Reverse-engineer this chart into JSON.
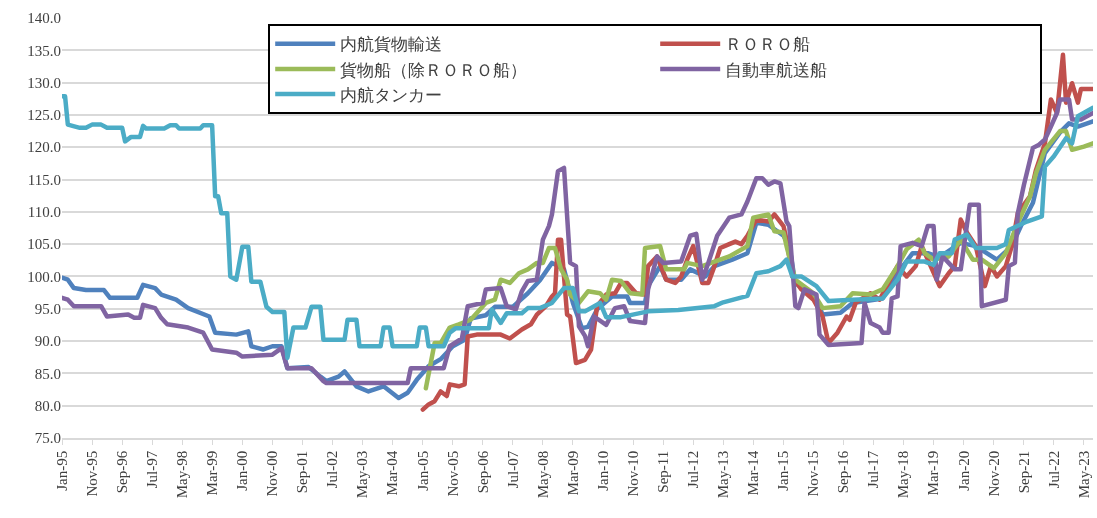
{
  "chart_data": {
    "type": "line",
    "xlim": [
      "1995-01",
      "2023-08"
    ],
    "xticks": [
      {
        "value": "1995-01",
        "label": "Jan-95"
      },
      {
        "value": "1995-11",
        "label": "Nov-95"
      },
      {
        "value": "1996-09",
        "label": "Sep-96"
      },
      {
        "value": "1997-07",
        "label": "Jul-97"
      },
      {
        "value": "1998-05",
        "label": "May-98"
      },
      {
        "value": "1999-03",
        "label": "Mar-99"
      },
      {
        "value": "2000-01",
        "label": "Jan-00"
      },
      {
        "value": "2000-11",
        "label": "Nov-00"
      },
      {
        "value": "2001-09",
        "label": "Sep-01"
      },
      {
        "value": "2002-07",
        "label": "Jul-02"
      },
      {
        "value": "2003-05",
        "label": "May-03"
      },
      {
        "value": "2004-03",
        "label": "Mar-04"
      },
      {
        "value": "2005-01",
        "label": "Jan-05"
      },
      {
        "value": "2005-11",
        "label": "Nov-05"
      },
      {
        "value": "2006-09",
        "label": "Sep-06"
      },
      {
        "value": "2007-07",
        "label": "Jul-07"
      },
      {
        "value": "2008-05",
        "label": "May-08"
      },
      {
        "value": "2009-03",
        "label": "Mar-09"
      },
      {
        "value": "2010-01",
        "label": "Jan-10"
      },
      {
        "value": "2010-11",
        "label": "Nov-10"
      },
      {
        "value": "2011-09",
        "label": "Sep-11"
      },
      {
        "value": "2012-07",
        "label": "Jul-12"
      },
      {
        "value": "2013-05",
        "label": "May-13"
      },
      {
        "value": "2014-03",
        "label": "Mar-14"
      },
      {
        "value": "2015-01",
        "label": "Jan-15"
      },
      {
        "value": "2015-11",
        "label": "Nov-15"
      },
      {
        "value": "2016-09",
        "label": "Sep-16"
      },
      {
        "value": "2017-07",
        "label": "Jul-17"
      },
      {
        "value": "2018-05",
        "label": "May-18"
      },
      {
        "value": "2019-03",
        "label": "Mar-19"
      },
      {
        "value": "2020-01",
        "label": "Jan-20"
      },
      {
        "value": "2020-11",
        "label": "Nov-20"
      },
      {
        "value": "2021-09",
        "label": "Sep-21"
      },
      {
        "value": "2022-07",
        "label": "Jul-22"
      },
      {
        "value": "2023-05",
        "label": "May-23"
      }
    ],
    "ylim": [
      75,
      140
    ],
    "yticks": [
      {
        "value": 75,
        "label": "75.0"
      },
      {
        "value": 80,
        "label": "80.0"
      },
      {
        "value": 85,
        "label": "85.0"
      },
      {
        "value": 90,
        "label": "90.0"
      },
      {
        "value": 95,
        "label": "95.0"
      },
      {
        "value": 100,
        "label": "100.0"
      },
      {
        "value": 105,
        "label": "105.0"
      },
      {
        "value": 110,
        "label": "110.0"
      },
      {
        "value": 115,
        "label": "115.0"
      },
      {
        "value": 120,
        "label": "120.0"
      },
      {
        "value": 125,
        "label": "125.0"
      },
      {
        "value": 130,
        "label": "130.0"
      },
      {
        "value": 135,
        "label": "135.0"
      },
      {
        "value": 140,
        "label": "140.0"
      }
    ],
    "grid": "y",
    "legend": "top",
    "marker": "none",
    "line_style": "solid",
    "series": [
      {
        "name": "内航貨物輸送",
        "color": "#4f81bd",
        "x": [
          "1995-01",
          "1995-03",
          "1995-05",
          "1995-09",
          "1996-03",
          "1996-05",
          "1997-02",
          "1997-04",
          "1997-08",
          "1997-10",
          "1998-03",
          "1998-07",
          "1999-02",
          "1999-04",
          "1999-11",
          "2000-03",
          "2000-04",
          "2000-08",
          "2000-11",
          "2001-02",
          "2001-04",
          "2001-11",
          "2002-03",
          "2002-05",
          "2002-09",
          "2002-11",
          "2003-03",
          "2003-07",
          "2003-12",
          "2004-05",
          "2004-08",
          "2004-11",
          "2005-03",
          "2005-07",
          "2005-11",
          "2006-03",
          "2006-05",
          "2006-10",
          "2007-01",
          "2007-07",
          "2007-12",
          "2008-04",
          "2008-08",
          "2008-12",
          "2009-03",
          "2009-06",
          "2009-08",
          "2009-11",
          "2010-04",
          "2010-09",
          "2010-10",
          "2011-03",
          "2011-04",
          "2011-08",
          "2011-10",
          "2012-03",
          "2012-06",
          "2012-11",
          "2013-02",
          "2013-08",
          "2014-01",
          "2014-04",
          "2014-08",
          "2015-01",
          "2015-03",
          "2015-05",
          "2015-12",
          "2016-02",
          "2016-08",
          "2016-12",
          "2017-10",
          "2018-03",
          "2018-08",
          "2019-01",
          "2019-05",
          "2019-12",
          "2020-05",
          "2020-12",
          "2021-05",
          "2021-08",
          "2021-12",
          "2022-04",
          "2022-09",
          "2022-12",
          "2023-03",
          "2023-08"
        ],
        "values": [
          99.8,
          99.5,
          98.2,
          97.9,
          97.9,
          96.7,
          96.7,
          98.7,
          98.2,
          97.2,
          96.4,
          95.1,
          93.8,
          91.3,
          91.0,
          91.5,
          89.2,
          88.7,
          89.2,
          89.2,
          85.8,
          86.0,
          84.5,
          83.8,
          84.5,
          85.3,
          83.0,
          82.2,
          83.0,
          81.2,
          82.0,
          84.0,
          86.1,
          87.2,
          89.2,
          90.2,
          93.5,
          94.0,
          95.3,
          95.3,
          97.4,
          99.4,
          102.1,
          101.1,
          95.9,
          92.0,
          92.2,
          94.9,
          96.9,
          96.9,
          95.9,
          95.9,
          98.5,
          101.6,
          99.5,
          99.5,
          101.1,
          100.0,
          101.6,
          102.6,
          103.6,
          108.3,
          108.0,
          106.3,
          104.7,
          99.0,
          96.4,
          94.1,
          94.4,
          95.9,
          96.6,
          100.5,
          103.6,
          103.6,
          103.0,
          105.2,
          104.7,
          102.6,
          104.7,
          107.8,
          111.4,
          119.1,
          122.3,
          123.7,
          123.2,
          124.0
        ]
      },
      {
        "name": "ＲＯＲＯ船",
        "color": "#c0504d",
        "x": [
          "2005-01",
          "2005-03",
          "2005-05",
          "2005-07",
          "2005-09",
          "2005-10",
          "2006-01",
          "2006-03",
          "2006-04",
          "2006-07",
          "2007-03",
          "2007-06",
          "2007-10",
          "2008-01",
          "2008-03",
          "2008-06",
          "2008-08",
          "2008-09",
          "2008-10",
          "2008-11",
          "2009-01",
          "2009-02",
          "2009-04",
          "2009-07",
          "2009-09",
          "2009-11",
          "2010-02",
          "2010-05",
          "2010-07",
          "2010-09",
          "2010-12",
          "2011-03",
          "2011-04",
          "2011-07",
          "2011-10",
          "2012-01",
          "2012-03",
          "2012-05",
          "2012-07",
          "2012-10",
          "2012-12",
          "2013-02",
          "2013-04",
          "2013-07",
          "2013-09",
          "2013-11",
          "2014-01",
          "2014-04",
          "2014-08",
          "2014-10",
          "2015-01",
          "2015-02",
          "2015-04",
          "2015-07",
          "2015-11",
          "2016-02",
          "2016-04",
          "2016-07",
          "2016-10",
          "2016-11",
          "2017-01",
          "2017-06",
          "2017-09",
          "2018-01",
          "2018-03",
          "2018-06",
          "2018-09",
          "2018-11",
          "2019-01",
          "2019-04",
          "2019-05",
          "2019-08",
          "2019-10",
          "2019-12",
          "2020-02",
          "2020-05",
          "2020-08",
          "2020-10",
          "2020-12",
          "2021-03",
          "2021-05",
          "2021-07",
          "2021-11",
          "2022-01",
          "2022-04",
          "2022-06",
          "2022-08",
          "2022-10",
          "2022-11",
          "2023-01",
          "2023-03",
          "2023-04",
          "2023-08"
        ],
        "values": [
          79.4,
          80.2,
          80.7,
          82.2,
          81.5,
          83.3,
          83.0,
          83.3,
          90.7,
          91.0,
          91.0,
          90.4,
          91.8,
          92.6,
          94.1,
          95.4,
          96.9,
          97.4,
          105.7,
          105.7,
          94.1,
          93.8,
          86.6,
          87.1,
          88.7,
          95.4,
          97.2,
          97.4,
          99.0,
          99.0,
          97.4,
          97.2,
          101.6,
          103.1,
          99.5,
          99.0,
          100.0,
          102.6,
          104.7,
          99.0,
          99.0,
          101.6,
          104.4,
          105.0,
          105.4,
          105.0,
          106.3,
          108.8,
          108.5,
          109.6,
          107.8,
          105.7,
          100.0,
          98.0,
          96.4,
          93.8,
          89.7,
          91.3,
          93.8,
          93.3,
          95.9,
          97.4,
          96.4,
          100.0,
          101.6,
          100.0,
          101.6,
          104.7,
          102.6,
          99.5,
          98.5,
          100.5,
          101.6,
          108.8,
          106.8,
          104.7,
          98.5,
          101.6,
          100.0,
          101.6,
          104.7,
          109.8,
          112.4,
          116.5,
          120.6,
          127.4,
          125.3,
          134.3,
          126.9,
          129.9,
          126.9,
          129.0,
          129.0
        ]
      },
      {
        "name": "貨物船（除ＲＯＲＯ船）",
        "color": "#9bbb59",
        "x": [
          "2005-02",
          "2005-05",
          "2005-07",
          "2005-10",
          "2006-01",
          "2006-05",
          "2006-10",
          "2007-01",
          "2007-03",
          "2007-06",
          "2007-09",
          "2007-12",
          "2008-03",
          "2008-05",
          "2008-07",
          "2008-09",
          "2008-11",
          "2009-01",
          "2009-02",
          "2009-05",
          "2009-08",
          "2009-12",
          "2010-02",
          "2010-04",
          "2010-07",
          "2010-10",
          "2011-02",
          "2011-03",
          "2011-08",
          "2011-10",
          "2012-04",
          "2012-05",
          "2012-10",
          "2013-02",
          "2013-07",
          "2014-01",
          "2014-03",
          "2014-08",
          "2014-10",
          "2015-01",
          "2015-02",
          "2015-05",
          "2015-11",
          "2016-02",
          "2016-08",
          "2016-12",
          "2017-06",
          "2017-10",
          "2018-03",
          "2018-06",
          "2018-10",
          "2018-12",
          "2019-03",
          "2019-08",
          "2019-12",
          "2020-04",
          "2020-07",
          "2020-11",
          "2021-03",
          "2021-07",
          "2021-11",
          "2022-01",
          "2022-04",
          "2022-09",
          "2022-11",
          "2023-01",
          "2023-05",
          "2023-08"
        ],
        "values": [
          82.7,
          89.7,
          89.7,
          92.1,
          92.6,
          93.3,
          95.9,
          96.4,
          99.5,
          99.0,
          100.5,
          101.1,
          102.1,
          102.1,
          104.4,
          104.4,
          101.1,
          99.5,
          97.2,
          95.9,
          97.7,
          97.4,
          96.4,
          99.5,
          99.3,
          97.4,
          97.2,
          104.4,
          104.7,
          101.1,
          101.1,
          102.1,
          101.6,
          102.3,
          103.1,
          104.7,
          109.1,
          109.6,
          107.0,
          106.8,
          104.7,
          99.5,
          97.4,
          95.1,
          95.4,
          97.4,
          97.2,
          98.0,
          101.6,
          104.2,
          105.7,
          103.6,
          102.6,
          103.1,
          105.7,
          102.6,
          102.6,
          101.3,
          103.6,
          108.3,
          112.4,
          116.0,
          119.6,
          122.5,
          122.5,
          119.6,
          120.1,
          120.6
        ]
      },
      {
        "name": "自動車航送船",
        "color": "#8064a2",
        "x": [
          "1995-01",
          "1995-03",
          "1995-05",
          "1996-02",
          "1996-04",
          "1996-11",
          "1997-01",
          "1997-03",
          "1997-04",
          "1997-08",
          "1997-10",
          "1997-12",
          "1998-07",
          "1998-12",
          "1999-03",
          "1999-11",
          "2000-01",
          "2000-11",
          "2001-02",
          "2001-04",
          "2001-12",
          "2002-04",
          "2002-05",
          "2004-08",
          "2004-09",
          "2005-08",
          "2005-10",
          "2006-02",
          "2006-04",
          "2006-09",
          "2006-10",
          "2007-03",
          "2007-05",
          "2007-08",
          "2007-10",
          "2007-12",
          "2008-03",
          "2008-05",
          "2008-07",
          "2008-08",
          "2008-10",
          "2008-12",
          "2009-02",
          "2009-04",
          "2009-05",
          "2009-07",
          "2009-08",
          "2009-10",
          "2010-02",
          "2010-05",
          "2010-08",
          "2010-10",
          "2011-03",
          "2011-04",
          "2011-07",
          "2011-09",
          "2012-03",
          "2012-06",
          "2012-08",
          "2012-10",
          "2012-12",
          "2013-03",
          "2013-07",
          "2013-11",
          "2014-01",
          "2014-04",
          "2014-06",
          "2014-08",
          "2014-10",
          "2014-12",
          "2015-02",
          "2015-03",
          "2015-05",
          "2015-06",
          "2015-08",
          "2015-12",
          "2016-01",
          "2016-04",
          "2017-03",
          "2017-04",
          "2017-06",
          "2017-09",
          "2017-10",
          "2017-12",
          "2018-01",
          "2018-03",
          "2018-04",
          "2018-08",
          "2018-11",
          "2019-01",
          "2019-03",
          "2019-04",
          "2019-06",
          "2019-10",
          "2019-12",
          "2020-03",
          "2020-06",
          "2020-07",
          "2021-03",
          "2021-04",
          "2021-06",
          "2021-07",
          "2021-09",
          "2021-12",
          "2022-02",
          "2022-04",
          "2022-06",
          "2022-08",
          "2022-09",
          "2022-12",
          "2023-01",
          "2023-04",
          "2023-08"
        ],
        "values": [
          96.7,
          96.4,
          95.4,
          95.4,
          93.8,
          94.1,
          93.6,
          93.6,
          95.6,
          95.1,
          93.6,
          92.6,
          92.1,
          91.3,
          88.7,
          88.2,
          87.6,
          87.9,
          88.9,
          85.8,
          85.8,
          83.8,
          83.5,
          83.5,
          85.8,
          85.8,
          89.2,
          90.4,
          95.4,
          95.9,
          98.0,
          98.2,
          95.4,
          94.9,
          97.7,
          99.3,
          99.5,
          105.7,
          107.8,
          109.6,
          116.3,
          116.8,
          102.1,
          101.6,
          92.3,
          90.8,
          89.2,
          93.8,
          92.5,
          95.1,
          95.4,
          93.1,
          92.8,
          98.0,
          103.1,
          102.1,
          102.3,
          106.3,
          106.6,
          99.5,
          102.1,
          106.3,
          109.1,
          109.6,
          111.6,
          115.2,
          115.2,
          114.2,
          114.7,
          114.4,
          108.5,
          107.8,
          95.4,
          95.1,
          98.0,
          97.2,
          91.0,
          89.4,
          89.7,
          95.9,
          92.8,
          92.1,
          91.3,
          91.3,
          96.6,
          96.9,
          104.7,
          105.2,
          104.7,
          107.8,
          107.8,
          99.5,
          103.1,
          101.1,
          101.1,
          111.1,
          111.1,
          95.4,
          96.4,
          101.6,
          102.1,
          109.8,
          114.2,
          119.9,
          120.4,
          121.2,
          123.2,
          125.3,
          127.4,
          127.4,
          124.3,
          124.3,
          125.3
        ]
      },
      {
        "name": "内航タンカー",
        "color": "#4bacc6",
        "x": [
          "1995-01",
          "1995-02",
          "1995-03",
          "1995-07",
          "1995-09",
          "1995-11",
          "1996-02",
          "1996-04",
          "1996-09",
          "1996-10",
          "1996-12",
          "1997-03",
          "1997-04",
          "1997-05",
          "1997-11",
          "1998-01",
          "1998-03",
          "1998-04",
          "1998-11",
          "1998-12",
          "1999-03",
          "1999-04",
          "1999-05",
          "1999-06",
          "1999-08",
          "1999-09",
          "1999-11",
          "2000-01",
          "2000-03",
          "2000-04",
          "2000-07",
          "2000-09",
          "2000-11",
          "2001-03",
          "2001-04",
          "2001-06",
          "2001-10",
          "2001-12",
          "2002-03",
          "2002-04",
          "2002-11",
          "2002-12",
          "2003-03",
          "2003-04",
          "2003-11",
          "2003-12",
          "2004-02",
          "2004-03",
          "2004-11",
          "2004-12",
          "2005-02",
          "2005-03",
          "2005-08",
          "2005-10",
          "2005-12",
          "2006-11",
          "2006-12",
          "2007-03",
          "2007-05",
          "2007-10",
          "2007-12",
          "2008-04",
          "2008-08",
          "2008-12",
          "2009-03",
          "2009-05",
          "2009-07",
          "2009-12",
          "2010-02",
          "2010-07",
          "2011-04",
          "2012-02",
          "2013-02",
          "2013-05",
          "2014-01",
          "2014-04",
          "2014-08",
          "2014-12",
          "2015-02",
          "2015-04",
          "2015-07",
          "2015-12",
          "2016-04",
          "2016-12",
          "2017-10",
          "2018-03",
          "2018-06",
          "2018-12",
          "2019-03",
          "2019-05",
          "2019-09",
          "2019-10",
          "2020-02",
          "2020-05",
          "2020-12",
          "2021-03",
          "2021-04",
          "2021-10",
          "2022-03",
          "2022-04",
          "2022-07",
          "2022-11",
          "2023-01",
          "2023-03",
          "2023-08"
        ],
        "values": [
          127.9,
          127.9,
          123.5,
          123.0,
          123.0,
          123.5,
          123.5,
          123.0,
          123.0,
          120.9,
          121.6,
          121.6,
          123.3,
          122.9,
          122.9,
          123.4,
          123.4,
          122.9,
          122.9,
          123.4,
          123.4,
          112.4,
          112.4,
          109.8,
          109.8,
          100.0,
          99.5,
          104.6,
          104.6,
          99.2,
          99.2,
          95.3,
          94.5,
          94.5,
          87.4,
          92.1,
          92.1,
          95.3,
          95.3,
          90.2,
          90.2,
          93.3,
          93.3,
          89.2,
          89.2,
          92.1,
          92.1,
          89.2,
          89.2,
          92.1,
          92.1,
          89.2,
          89.2,
          91.3,
          92.0,
          92.0,
          94.9,
          92.8,
          94.3,
          94.3,
          95.1,
          95.1,
          95.9,
          98.2,
          98.2,
          94.6,
          94.6,
          95.9,
          93.7,
          93.7,
          94.6,
          94.8,
          95.4,
          96.0,
          97.0,
          100.5,
          100.8,
          101.6,
          102.6,
          100.0,
          100.0,
          98.5,
          96.2,
          96.4,
          96.6,
          99.5,
          102.3,
          102.3,
          101.8,
          103.6,
          103.6,
          105.7,
          106.5,
          104.4,
          104.4,
          105.0,
          107.2,
          108.5,
          109.3,
          117.0,
          118.6,
          121.4,
          120.6,
          124.8,
          126.1
        ]
      }
    ]
  }
}
